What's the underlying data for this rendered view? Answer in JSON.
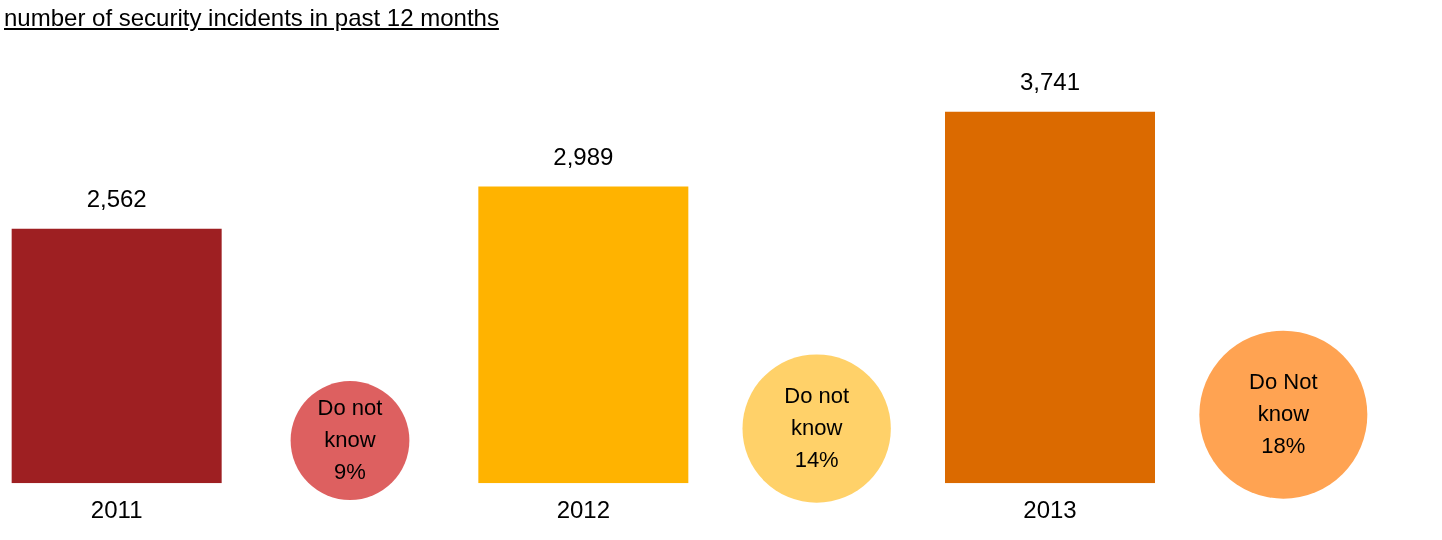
{
  "chart_data": {
    "type": "bar",
    "title": "number of security incidents in past 12 months",
    "categories": [
      "2011",
      null,
      "2012",
      null,
      "2013",
      null
    ],
    "legend": false,
    "grid": false,
    "series": [
      {
        "colors": [
          "#9e1f22",
          null,
          "#ffb300",
          null,
          "#db6a00",
          null
        ],
        "values": [
          2562,
          null,
          2989,
          null,
          3741,
          null
        ],
        "value_labels": [
          "2,562",
          null,
          "2,989",
          null,
          "3,741",
          null
        ]
      },
      {
        "type": "bubble",
        "colors": [
          null,
          "#dd6060",
          null,
          "#ffd169",
          null,
          "#ffa352"
        ],
        "values": [
          null,
          430,
          null,
          550,
          null,
          690
        ],
        "sizes": [
          null,
          0.5,
          null,
          0.78,
          null,
          1
        ],
        "value_labels": [
          null,
          "Do not\nknow\n9%",
          null,
          "Do not\nknow\n14%",
          null,
          "Do Not\nknow\n18%"
        ]
      }
    ]
  }
}
